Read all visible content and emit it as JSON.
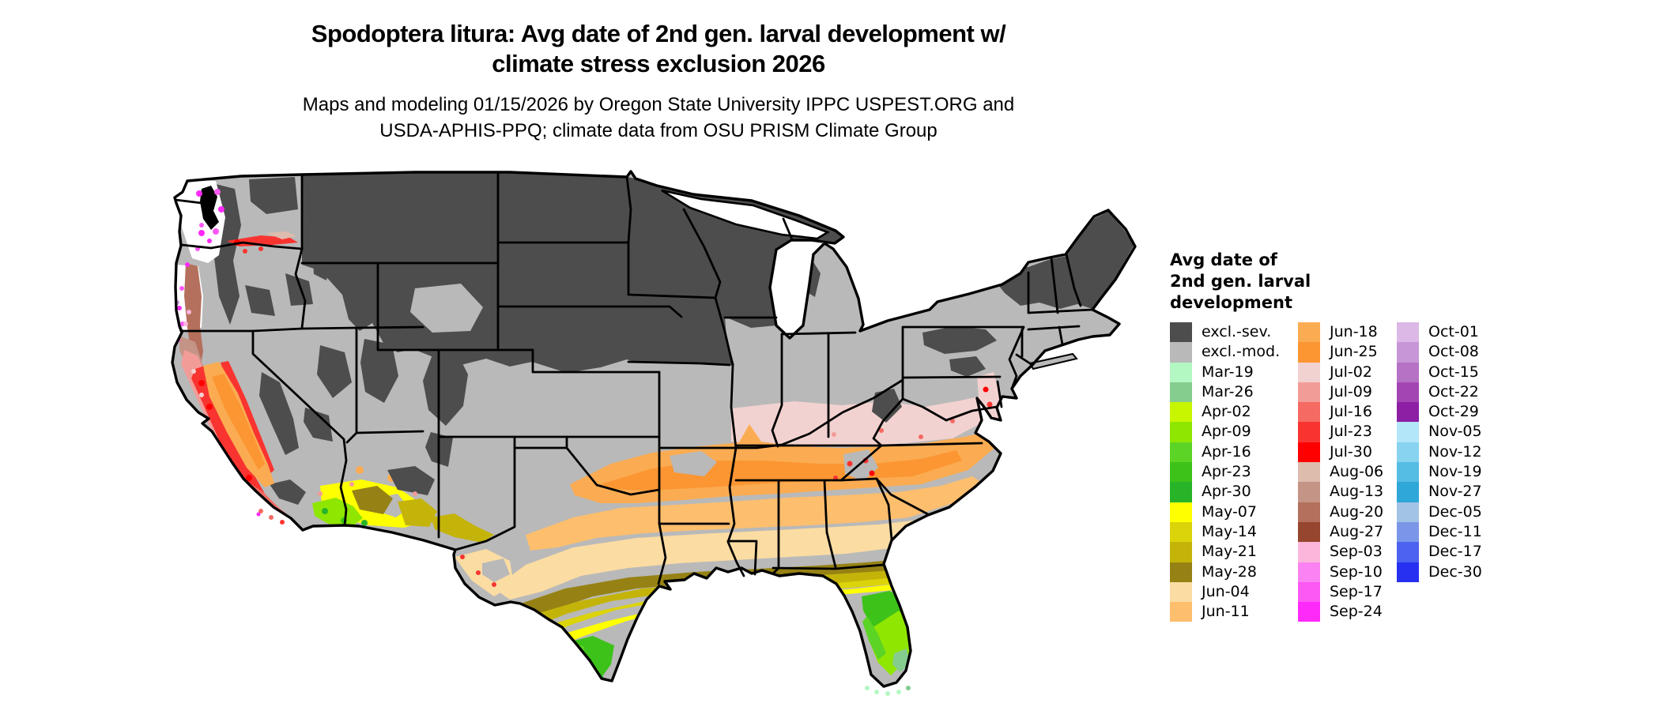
{
  "figure": {
    "title_lines": [
      "Spodoptera litura: Avg date of 2nd gen. larval development w/",
      "climate stress exclusion 2026"
    ],
    "subtitle_lines": [
      "Maps and modeling 01/15/2026 by Oregon State University IPPC USPEST.ORG and",
      "USDA-APHIS-PPQ; climate data from OSU PRISM Climate Group"
    ]
  },
  "legend": {
    "title": "Avg date of\n2nd gen. larval\ndevelopment",
    "columns": [
      {
        "entries": [
          {
            "label": "excl.-sev.",
            "color": "#4D4D4D"
          },
          {
            "label": "excl.-mod.",
            "color": "#B9B9B9"
          },
          {
            "label": "Mar-19",
            "color": "#B3F7C3"
          },
          {
            "label": "Mar-26",
            "color": "#85CC8F"
          },
          {
            "label": "Apr-02",
            "color": "#C8F500"
          },
          {
            "label": "Apr-09",
            "color": "#8FE600"
          },
          {
            "label": "Apr-16",
            "color": "#5CD426"
          },
          {
            "label": "Apr-23",
            "color": "#3DC219"
          },
          {
            "label": "Apr-30",
            "color": "#28B428"
          },
          {
            "label": "May-07",
            "color": "#FFFF00"
          },
          {
            "label": "May-14",
            "color": "#DCD40A"
          },
          {
            "label": "May-21",
            "color": "#C4B40A"
          },
          {
            "label": "May-28",
            "color": "#968214"
          },
          {
            "label": "Jun-04",
            "color": "#FBDCA2"
          },
          {
            "label": "Jun-11",
            "color": "#FDBE6E"
          }
        ]
      },
      {
        "entries": [
          {
            "label": "Jun-18",
            "color": "#FBAC52"
          },
          {
            "label": "Jun-25",
            "color": "#FB9632"
          },
          {
            "label": "Jul-02",
            "color": "#F2D2D0"
          },
          {
            "label": "Jul-09",
            "color": "#F29C98"
          },
          {
            "label": "Jul-16",
            "color": "#F56A62"
          },
          {
            "label": "Jul-23",
            "color": "#F93430"
          },
          {
            "label": "Jul-30",
            "color": "#FE0000"
          },
          {
            "label": "Aug-06",
            "color": "#DDBCAE"
          },
          {
            "label": "Aug-13",
            "color": "#C49486"
          },
          {
            "label": "Aug-20",
            "color": "#B4705C"
          },
          {
            "label": "Aug-27",
            "color": "#96452E"
          },
          {
            "label": "Sep-03",
            "color": "#FBB6DC"
          },
          {
            "label": "Sep-10",
            "color": "#FB82F2"
          },
          {
            "label": "Sep-17",
            "color": "#FC58F3"
          },
          {
            "label": "Sep-24",
            "color": "#FE2AF9"
          }
        ]
      },
      {
        "entries": [
          {
            "label": "Oct-01",
            "color": "#DBB8E6"
          },
          {
            "label": "Oct-08",
            "color": "#C796D7"
          },
          {
            "label": "Oct-15",
            "color": "#B672C5"
          },
          {
            "label": "Oct-22",
            "color": "#A346B4"
          },
          {
            "label": "Oct-29",
            "color": "#8C1FA4"
          },
          {
            "label": "Nov-05",
            "color": "#B4E6FA"
          },
          {
            "label": "Nov-12",
            "color": "#87D3F0"
          },
          {
            "label": "Nov-19",
            "color": "#55BCE4"
          },
          {
            "label": "Nov-27",
            "color": "#2FA7D8"
          },
          {
            "label": "Dec-05",
            "color": "#A3C3E6"
          },
          {
            "label": "Dec-11",
            "color": "#7B96E8"
          },
          {
            "label": "Dec-17",
            "color": "#4C62F0"
          },
          {
            "label": "Dec-30",
            "color": "#2730F0"
          }
        ]
      }
    ]
  },
  "map": {
    "region": "contiguous United States",
    "background_color": "#FFFFFF",
    "state_border_color": "#000000",
    "excluded_severe_color": "#4D4D4D",
    "excluded_moderate_color": "#B9B9B9"
  }
}
